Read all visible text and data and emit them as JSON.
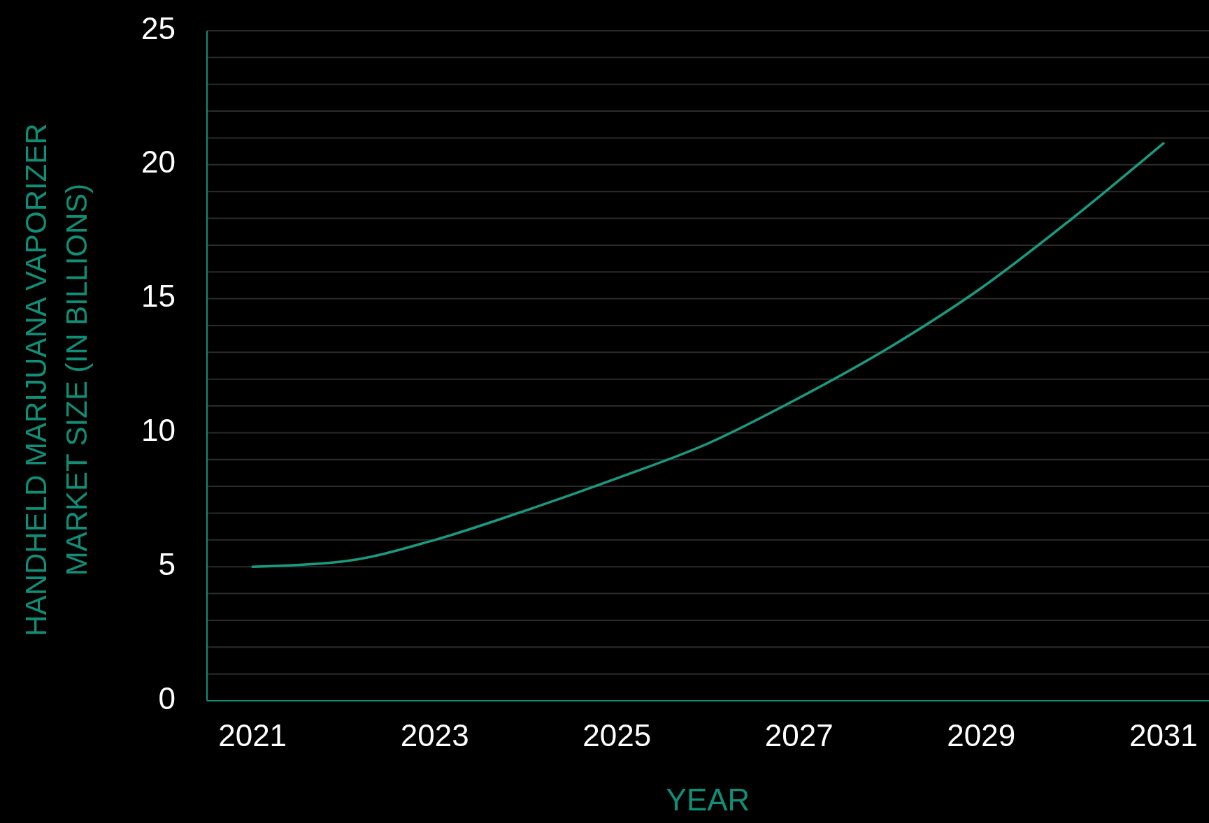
{
  "chart_data": {
    "type": "line",
    "xlabel": "YEAR",
    "ylabel": "HANDHELD MARIJUANA VAPORIZER\nMARKET SIZE (IN BILLIONS)",
    "x": [
      2021,
      2022,
      2023,
      2024,
      2025,
      2026,
      2027,
      2028,
      2029,
      2030,
      2031
    ],
    "series": [
      {
        "color": "#1a9a80",
        "values": [
          5.0,
          5.2,
          6.0,
          7.1,
          8.3,
          9.6,
          11.3,
          13.2,
          15.4,
          18.0,
          20.8
        ]
      }
    ],
    "xlim": [
      2020.5,
      2031.5
    ],
    "xticks": [
      2021,
      2023,
      2025,
      2027,
      2029,
      2031
    ],
    "ylim": [
      0,
      25
    ],
    "yticks": [
      0,
      {
        "value": 1,
        "label": null
      },
      {
        "value": 2,
        "label": null
      },
      {
        "value": 3,
        "label": null
      },
      {
        "value": 4,
        "label": null
      },
      5,
      {
        "value": 6,
        "label": null
      },
      {
        "value": 7,
        "label": null
      },
      {
        "value": 8,
        "label": null
      },
      {
        "value": 9,
        "label": null
      },
      10,
      {
        "value": 11,
        "label": null
      },
      {
        "value": 12,
        "label": null
      },
      {
        "value": 13,
        "label": null
      },
      {
        "value": 14,
        "label": null
      },
      15,
      {
        "value": 16,
        "label": null
      },
      {
        "value": 17,
        "label": null
      },
      {
        "value": 18,
        "label": null
      },
      {
        "value": 19,
        "label": null
      },
      20,
      {
        "value": 21,
        "label": null
      },
      {
        "value": 22,
        "label": null
      },
      {
        "value": 23,
        "label": null
      },
      {
        "value": 24,
        "label": null
      },
      25
    ],
    "grid": "y",
    "marker": "none",
    "line_style": "solid"
  }
}
